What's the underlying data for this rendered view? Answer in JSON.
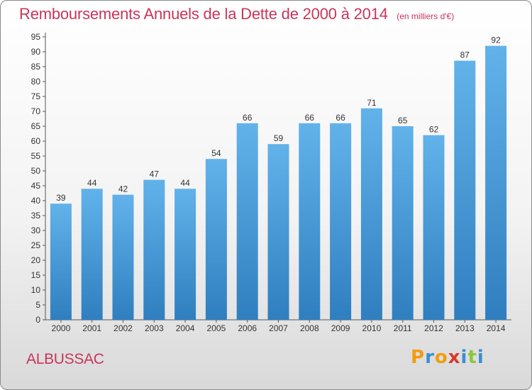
{
  "header": {
    "title": "Remboursements Annuels de la Dette de 2000 à 2014",
    "subtitle": "(en milliers d'€)"
  },
  "footer": {
    "commune": "ALBUSSAC",
    "logo_text": "Proxiti",
    "logo_letters": [
      "P",
      "r",
      "o",
      "x",
      "i",
      "t",
      "i"
    ],
    "logo_colors": [
      "#f39c12",
      "#3a8fd0",
      "#f39c12",
      "#d63b2f",
      "#3a8fd0",
      "#8cc63f",
      "#3a8fd0"
    ]
  },
  "colors": {
    "title": "#c8365a",
    "bar_top": "#62b2ea",
    "bar_bottom": "#2f7fc0"
  },
  "chart_data": {
    "type": "bar",
    "categories": [
      "2000",
      "2001",
      "2002",
      "2003",
      "2004",
      "2005",
      "2006",
      "2007",
      "2008",
      "2009",
      "2010",
      "2011",
      "2012",
      "2013",
      "2014"
    ],
    "values": [
      39,
      44,
      42,
      47,
      44,
      54,
      66,
      59,
      66,
      66,
      71,
      65,
      62,
      87,
      92
    ],
    "title": "Remboursements Annuels de la Dette de 2000 à 2014",
    "subtitle": "(en milliers d'€)",
    "xlabel": "",
    "ylabel": "",
    "ylim": [
      0,
      95
    ],
    "yticks": [
      0,
      5,
      10,
      15,
      20,
      25,
      30,
      35,
      40,
      45,
      50,
      55,
      60,
      65,
      70,
      75,
      80,
      85,
      90,
      95
    ],
    "grid": false,
    "legend": "none",
    "data_labels": true
  }
}
